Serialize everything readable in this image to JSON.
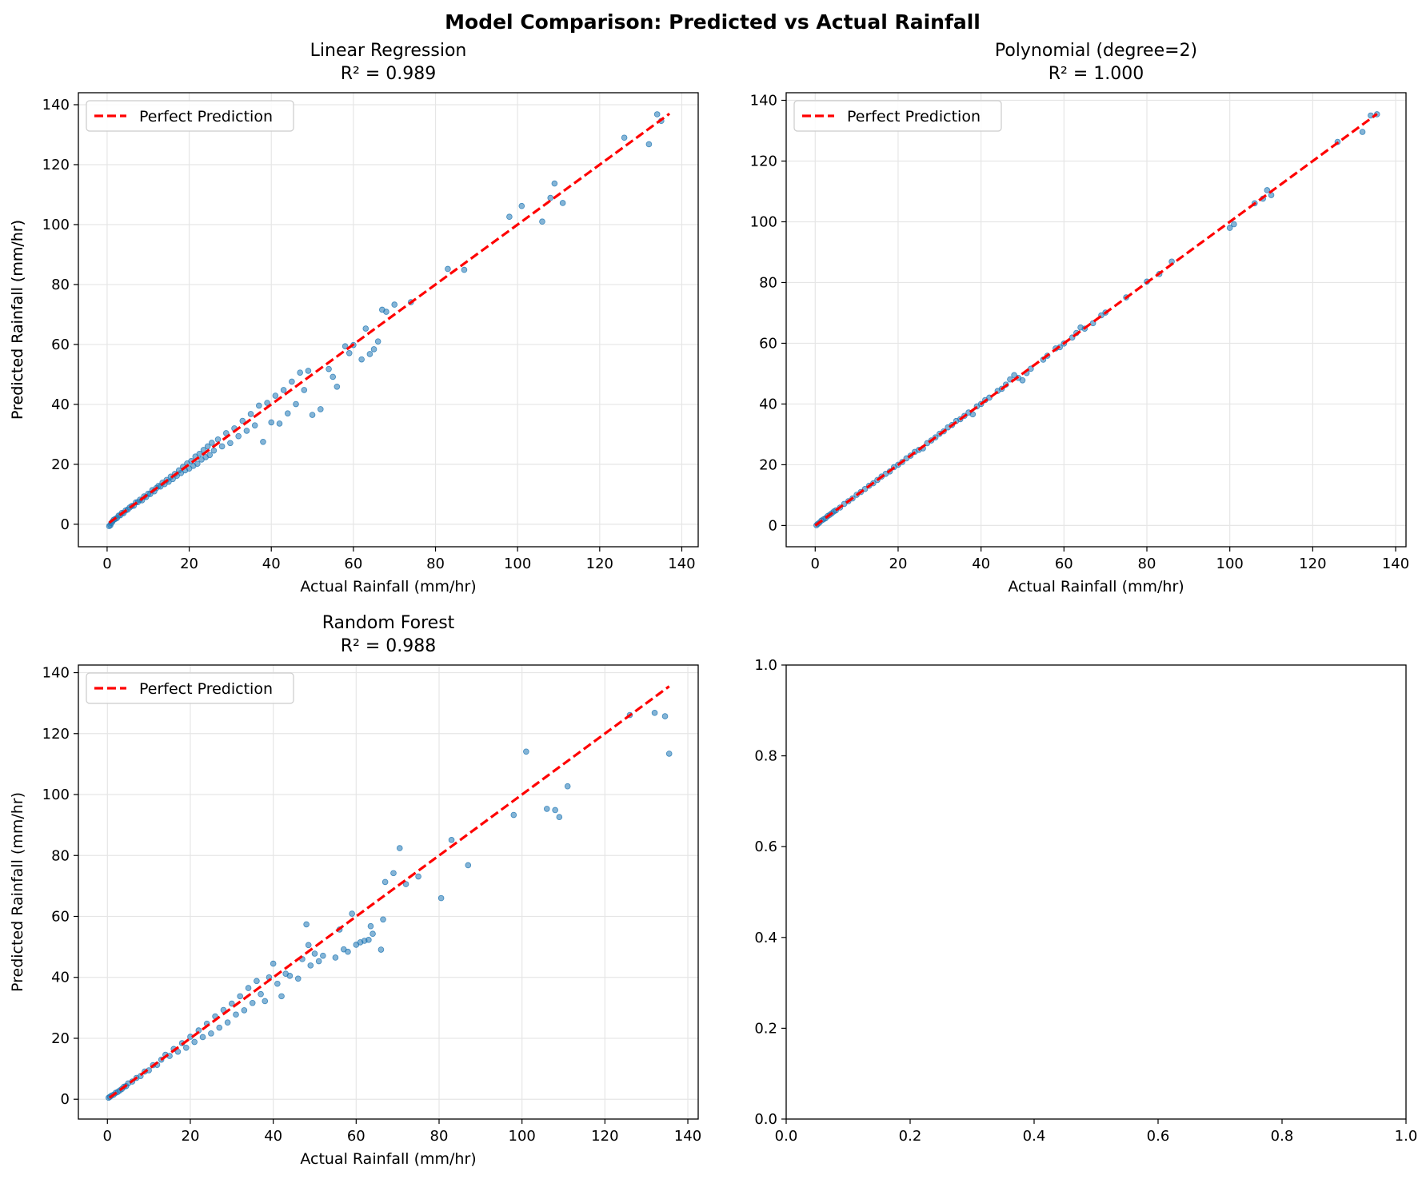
{
  "figure": {
    "title": "Model Comparison: Predicted vs Actual Rainfall"
  },
  "colors": {
    "points": "#1f77b4",
    "perfect_line": "#ff0000",
    "grid": "#e6e6e6",
    "axes": "#000000"
  },
  "chart_data": [
    {
      "type": "scatter",
      "title": "Linear Regression",
      "subtitle": "R² = 0.989",
      "xlabel": "Actual Rainfall (mm/hr)",
      "ylabel": "Predicted Rainfall (mm/hr)",
      "xlim": [
        -7,
        144
      ],
      "ylim": [
        -7.5,
        144
      ],
      "xticks": [
        0,
        20,
        40,
        60,
        80,
        100,
        120,
        140
      ],
      "yticks": [
        0,
        20,
        40,
        60,
        80,
        100,
        120,
        140
      ],
      "grid": true,
      "legend": {
        "placement": "upper-left",
        "entries": [
          "Perfect Prediction"
        ]
      },
      "reference_line": {
        "name": "Perfect Prediction",
        "x": [
          0.5,
          137
        ],
        "y": [
          0.5,
          137
        ],
        "style": "dashed"
      },
      "points": [
        [
          0.5,
          -0.6
        ],
        [
          0.8,
          -0.3
        ],
        [
          1.0,
          0.4
        ],
        [
          1.3,
          0.9
        ],
        [
          1.6,
          1.5
        ],
        [
          2.0,
          1.8
        ],
        [
          2.4,
          2.1
        ],
        [
          2.8,
          2.9
        ],
        [
          3.2,
          3.0
        ],
        [
          3.6,
          3.8
        ],
        [
          4.0,
          3.7
        ],
        [
          4.5,
          4.6
        ],
        [
          5.0,
          4.9
        ],
        [
          5.5,
          5.6
        ],
        [
          6.0,
          6.1
        ],
        [
          6.5,
          6.2
        ],
        [
          7.0,
          7.3
        ],
        [
          7.5,
          7.4
        ],
        [
          8.0,
          8.2
        ],
        [
          8.5,
          8.0
        ],
        [
          9.0,
          9.3
        ],
        [
          9.5,
          9.1
        ],
        [
          10.0,
          10.2
        ],
        [
          10.5,
          10.1
        ],
        [
          11.0,
          11.4
        ],
        [
          11.5,
          11.0
        ],
        [
          12.0,
          12.1
        ],
        [
          12.5,
          12.8
        ],
        [
          13.0,
          12.6
        ],
        [
          13.5,
          13.9
        ],
        [
          14.0,
          13.4
        ],
        [
          14.5,
          14.8
        ],
        [
          15.0,
          14.2
        ],
        [
          15.5,
          15.9
        ],
        [
          16.0,
          15.1
        ],
        [
          16.5,
          16.8
        ],
        [
          17.0,
          16.2
        ],
        [
          17.5,
          18.0
        ],
        [
          18.0,
          17.1
        ],
        [
          18.5,
          19.2
        ],
        [
          19.0,
          18.0
        ],
        [
          19.5,
          20.3
        ],
        [
          20.0,
          18.6
        ],
        [
          20.5,
          21.1
        ],
        [
          21.0,
          19.5
        ],
        [
          21.5,
          22.6
        ],
        [
          22.0,
          20.2
        ],
        [
          22.5,
          23.5
        ],
        [
          23.0,
          21.6
        ],
        [
          23.5,
          24.8
        ],
        [
          24.0,
          22.4
        ],
        [
          24.5,
          26.0
        ],
        [
          25.0,
          23.1
        ],
        [
          25.5,
          27.2
        ],
        [
          26.0,
          24.6
        ],
        [
          27.0,
          28.3
        ],
        [
          28.0,
          26.0
        ],
        [
          29.0,
          30.4
        ],
        [
          30.0,
          27.1
        ],
        [
          31.0,
          32.0
        ],
        [
          32.0,
          29.4
        ],
        [
          33.0,
          34.5
        ],
        [
          34.0,
          31.2
        ],
        [
          35.0,
          36.8
        ],
        [
          36.0,
          33.0
        ],
        [
          37.0,
          39.6
        ],
        [
          38.0,
          27.5
        ],
        [
          39.0,
          40.5
        ],
        [
          40.0,
          34.0
        ],
        [
          41.0,
          42.9
        ],
        [
          42.0,
          33.6
        ],
        [
          43.0,
          44.8
        ],
        [
          44.0,
          37.0
        ],
        [
          45.0,
          47.6
        ],
        [
          46.0,
          40.1
        ],
        [
          47.0,
          50.6
        ],
        [
          48.0,
          44.8
        ],
        [
          49.0,
          51.2
        ],
        [
          50.0,
          36.5
        ],
        [
          52.0,
          38.4
        ],
        [
          54.0,
          51.8
        ],
        [
          55.0,
          49.2
        ],
        [
          56.0,
          45.9
        ],
        [
          58.0,
          59.4
        ],
        [
          59.0,
          57.1
        ],
        [
          60.0,
          59.8
        ],
        [
          62.0,
          55.0
        ],
        [
          63.0,
          65.3
        ],
        [
          64.0,
          56.8
        ],
        [
          65.0,
          58.4
        ],
        [
          66.0,
          61.0
        ],
        [
          67.0,
          71.6
        ],
        [
          68.0,
          70.9
        ],
        [
          70.0,
          73.3
        ],
        [
          74.0,
          74.1
        ],
        [
          83.0,
          85.2
        ],
        [
          87.0,
          84.9
        ],
        [
          98.0,
          102.6
        ],
        [
          101.0,
          106.2
        ],
        [
          106.0,
          101.0
        ],
        [
          108.0,
          108.9
        ],
        [
          109.0,
          113.7
        ],
        [
          111.0,
          107.2
        ],
        [
          126.0,
          129.0
        ],
        [
          132.0,
          126.8
        ],
        [
          134.0,
          136.8
        ],
        [
          135.0,
          134.6
        ]
      ]
    },
    {
      "type": "scatter",
      "title": "Polynomial (degree=2)",
      "subtitle": "R² = 1.000",
      "xlabel": "Actual Rainfall (mm/hr)",
      "ylabel": "Predicted Rainfall (mm/hr)",
      "xlim": [
        -7,
        142.5
      ],
      "ylim": [
        -7,
        142.5
      ],
      "xticks": [
        0,
        20,
        40,
        60,
        80,
        100,
        120,
        140
      ],
      "yticks": [
        0,
        20,
        40,
        60,
        80,
        100,
        120,
        140
      ],
      "grid": true,
      "legend": {
        "placement": "upper-left",
        "entries": [
          "Perfect Prediction"
        ]
      },
      "reference_line": {
        "name": "Perfect Prediction",
        "x": [
          0,
          135.5
        ],
        "y": [
          0,
          135.5
        ],
        "style": "dashed"
      },
      "points": [
        [
          0.3,
          0.1
        ],
        [
          0.6,
          0.5
        ],
        [
          1.0,
          0.9
        ],
        [
          1.5,
          1.6
        ],
        [
          2.0,
          2.0
        ],
        [
          2.5,
          2.4
        ],
        [
          3.0,
          3.1
        ],
        [
          3.5,
          3.5
        ],
        [
          4.0,
          4.0
        ],
        [
          4.5,
          4.6
        ],
        [
          5.0,
          5.0
        ],
        [
          6.0,
          5.9
        ],
        [
          7.0,
          7.1
        ],
        [
          8.0,
          8.0
        ],
        [
          9.0,
          8.9
        ],
        [
          10.0,
          10.1
        ],
        [
          11.0,
          11.0
        ],
        [
          12.0,
          12.0
        ],
        [
          13.0,
          13.1
        ],
        [
          14.0,
          13.9
        ],
        [
          15.0,
          15.0
        ],
        [
          16.0,
          16.1
        ],
        [
          17.0,
          17.0
        ],
        [
          18.0,
          17.8
        ],
        [
          19.0,
          19.2
        ],
        [
          20.0,
          20.0
        ],
        [
          21.0,
          20.9
        ],
        [
          22.0,
          22.1
        ],
        [
          23.0,
          23.0
        ],
        [
          24.0,
          24.2
        ],
        [
          25.0,
          24.9
        ],
        [
          26.0,
          25.4
        ],
        [
          27.0,
          27.1
        ],
        [
          28.0,
          28.0
        ],
        [
          29.0,
          29.0
        ],
        [
          30.0,
          30.2
        ],
        [
          31.0,
          31.0
        ],
        [
          32.0,
          32.3
        ],
        [
          33.0,
          33.1
        ],
        [
          34.0,
          34.4
        ],
        [
          35.0,
          35.0
        ],
        [
          36.0,
          36.1
        ],
        [
          37.0,
          37.2
        ],
        [
          38.0,
          36.6
        ],
        [
          39.0,
          39.2
        ],
        [
          40.0,
          40.0
        ],
        [
          41.0,
          41.3
        ],
        [
          42.0,
          42.1
        ],
        [
          44.0,
          44.3
        ],
        [
          45.0,
          45.0
        ],
        [
          46.0,
          46.4
        ],
        [
          47.0,
          48.1
        ],
        [
          48.0,
          49.5
        ],
        [
          49.0,
          48.6
        ],
        [
          50.0,
          47.8
        ],
        [
          51.0,
          50.2
        ],
        [
          52.0,
          51.6
        ],
        [
          55.0,
          54.6
        ],
        [
          56.0,
          55.9
        ],
        [
          58.0,
          58.3
        ],
        [
          59.0,
          58.7
        ],
        [
          60.0,
          59.9
        ],
        [
          62.0,
          61.9
        ],
        [
          63.0,
          63.4
        ],
        [
          64.0,
          65.2
        ],
        [
          65.0,
          64.8
        ],
        [
          67.0,
          66.6
        ],
        [
          69.0,
          69.2
        ],
        [
          70.0,
          70.1
        ],
        [
          75.0,
          75.1
        ],
        [
          80.0,
          80.3
        ],
        [
          83.0,
          82.8
        ],
        [
          86.0,
          86.9
        ],
        [
          100.0,
          98.0
        ],
        [
          101.0,
          99.2
        ],
        [
          106.0,
          106.1
        ],
        [
          108.0,
          107.6
        ],
        [
          109.0,
          110.4
        ],
        [
          110.0,
          108.8
        ],
        [
          126.0,
          126.3
        ],
        [
          132.0,
          129.6
        ],
        [
          134.0,
          135.0
        ],
        [
          135.5,
          135.4
        ]
      ]
    },
    {
      "type": "scatter",
      "title": "Random Forest",
      "subtitle": "R² = 0.988",
      "xlabel": "Actual Rainfall (mm/hr)",
      "ylabel": "Predicted Rainfall (mm/hr)",
      "xlim": [
        -7,
        142.5
      ],
      "ylim": [
        -6.5,
        142.5
      ],
      "xticks": [
        0,
        20,
        40,
        60,
        80,
        100,
        120,
        140
      ],
      "yticks": [
        0,
        20,
        40,
        60,
        80,
        100,
        120,
        140
      ],
      "grid": true,
      "legend": {
        "placement": "upper-left",
        "entries": [
          "Perfect Prediction"
        ]
      },
      "reference_line": {
        "name": "Perfect Prediction",
        "x": [
          0.5,
          135.5
        ],
        "y": [
          0.5,
          135.5
        ],
        "style": "dashed"
      },
      "points": [
        [
          0.3,
          0.5
        ],
        [
          0.6,
          0.8
        ],
        [
          1.0,
          1.2
        ],
        [
          1.5,
          1.5
        ],
        [
          2.0,
          2.1
        ],
        [
          2.5,
          2.4
        ],
        [
          3.0,
          2.9
        ],
        [
          3.5,
          3.4
        ],
        [
          4.0,
          4.1
        ],
        [
          4.5,
          4.3
        ],
        [
          5.0,
          5.2
        ],
        [
          6.0,
          5.8
        ],
        [
          7.0,
          7.0
        ],
        [
          8.0,
          7.6
        ],
        [
          9.0,
          9.1
        ],
        [
          10.0,
          9.5
        ],
        [
          11.0,
          11.2
        ],
        [
          12.0,
          11.3
        ],
        [
          13.0,
          13.0
        ],
        [
          14.0,
          14.6
        ],
        [
          15.0,
          14.2
        ],
        [
          16.0,
          16.5
        ],
        [
          17.0,
          15.6
        ],
        [
          18.0,
          18.4
        ],
        [
          19.0,
          16.9
        ],
        [
          20.0,
          20.5
        ],
        [
          21.0,
          18.8
        ],
        [
          22.0,
          22.6
        ],
        [
          23.0,
          20.4
        ],
        [
          24.0,
          24.8
        ],
        [
          25.0,
          21.6
        ],
        [
          26.0,
          27.2
        ],
        [
          27.0,
          23.5
        ],
        [
          28.0,
          29.3
        ],
        [
          29.0,
          25.2
        ],
        [
          30.0,
          31.4
        ],
        [
          31.0,
          27.8
        ],
        [
          32.0,
          33.8
        ],
        [
          33.0,
          29.2
        ],
        [
          34.0,
          36.5
        ],
        [
          35.0,
          31.6
        ],
        [
          36.0,
          38.8
        ],
        [
          37.0,
          34.5
        ],
        [
          38.0,
          32.2
        ],
        [
          39.0,
          40.0
        ],
        [
          40.0,
          44.5
        ],
        [
          41.0,
          37.9
        ],
        [
          42.0,
          33.8
        ],
        [
          43.0,
          41.2
        ],
        [
          44.0,
          40.5
        ],
        [
          46.0,
          39.6
        ],
        [
          47.0,
          46.0
        ],
        [
          48.0,
          57.4
        ],
        [
          48.5,
          50.6
        ],
        [
          49.0,
          43.9
        ],
        [
          50.0,
          47.8
        ],
        [
          51.0,
          45.3
        ],
        [
          52.0,
          47.1
        ],
        [
          55.0,
          46.5
        ],
        [
          56.0,
          55.7
        ],
        [
          57.0,
          49.2
        ],
        [
          58.0,
          48.4
        ],
        [
          59.0,
          60.9
        ],
        [
          60.0,
          50.7
        ],
        [
          61.0,
          51.5
        ],
        [
          62.0,
          52.0
        ],
        [
          63.0,
          52.3
        ],
        [
          63.5,
          56.8
        ],
        [
          64.0,
          54.3
        ],
        [
          66.0,
          49.1
        ],
        [
          66.5,
          59.0
        ],
        [
          67.0,
          71.3
        ],
        [
          69.0,
          74.2
        ],
        [
          70.5,
          82.4
        ],
        [
          72.0,
          70.6
        ],
        [
          75.0,
          73.1
        ],
        [
          80.5,
          66.0
        ],
        [
          83.0,
          85.1
        ],
        [
          87.0,
          76.8
        ],
        [
          98.0,
          93.3
        ],
        [
          101.0,
          114.1
        ],
        [
          106.0,
          95.3
        ],
        [
          108.0,
          94.9
        ],
        [
          109.0,
          92.6
        ],
        [
          111.0,
          102.7
        ],
        [
          126.0,
          126.1
        ],
        [
          132.0,
          126.8
        ],
        [
          134.5,
          125.7
        ],
        [
          135.5,
          113.4
        ]
      ]
    },
    {
      "type": "scatter",
      "title": "",
      "xlim": [
        0,
        1
      ],
      "ylim": [
        0,
        1
      ],
      "xticks": [
        0.0,
        0.2,
        0.4,
        0.6,
        0.8,
        1.0
      ],
      "yticks": [
        0.0,
        0.2,
        0.4,
        0.6,
        0.8,
        1.0
      ],
      "tick_format": "0.0",
      "grid": false,
      "points": []
    }
  ]
}
